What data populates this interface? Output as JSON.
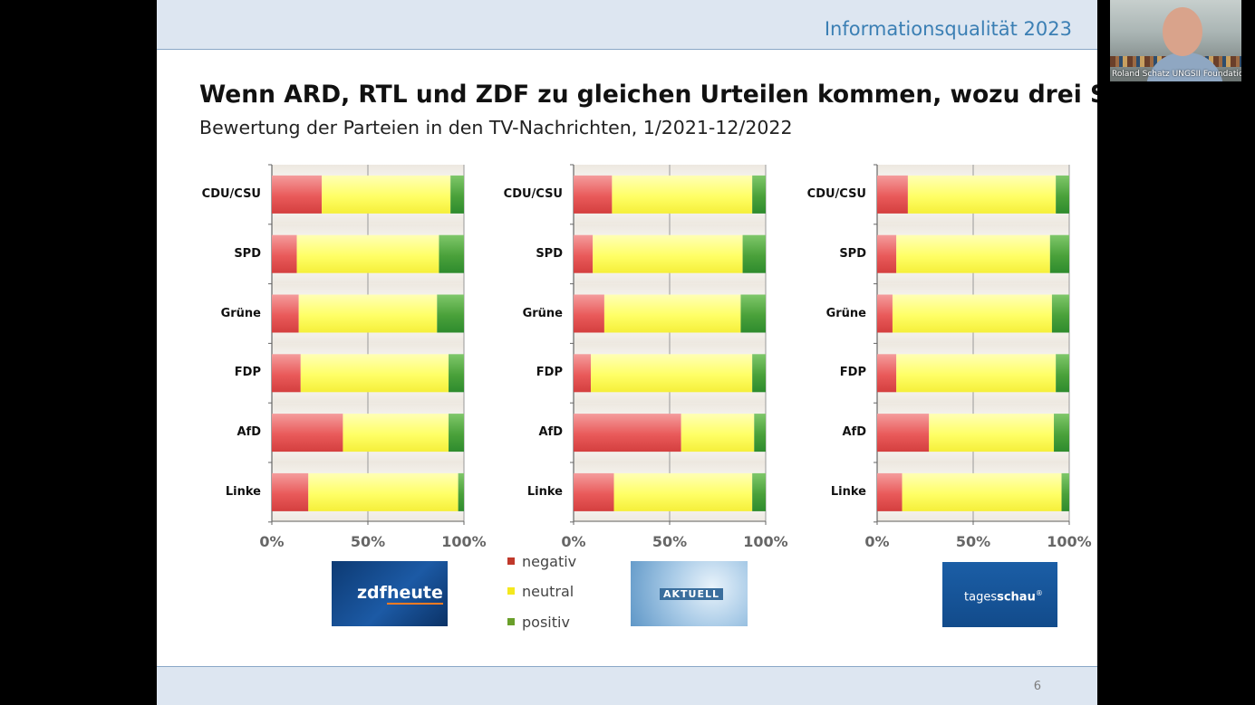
{
  "header": {
    "title": "Informationsqualität 2023"
  },
  "slide": {
    "title": "Wenn ARD, RTL und ZDF zu gleichen Urteilen kommen, wozu drei Sender?",
    "subtitle": "Bewertung der Parteien in den TV-Nachrichten, 1/2021-12/2022",
    "page_number": "6"
  },
  "webcam": {
    "caption": "Roland Schatz UNGSII Foundation"
  },
  "colors": {
    "negativ": "#e95a5a",
    "neutral": "#ffff66",
    "positiv": "#4aa13a"
  },
  "legend": [
    {
      "label": "negativ",
      "color": "#c0392b"
    },
    {
      "label": "neutral",
      "color": "#f4e81e"
    },
    {
      "label": "positiv",
      "color": "#6a9f2a"
    }
  ],
  "logos": [
    {
      "name": "zdf",
      "prefix": "zdf",
      "text": "heute"
    },
    {
      "name": "rtl",
      "text": "AKTUELL"
    },
    {
      "name": "ard",
      "prefix": "tages",
      "text": "schau"
    }
  ],
  "chart_data": [
    {
      "type": "bar",
      "orientation": "horizontal-stacked-100",
      "categories": [
        "CDU/CSU",
        "SPD",
        "Grüne",
        "FDP",
        "AfD",
        "Linke"
      ],
      "x_ticks": [
        "0%",
        "50%",
        "100%"
      ],
      "xlim": [
        0,
        100
      ],
      "series": [
        {
          "name": "negativ",
          "values": [
            26,
            13,
            14,
            15,
            37,
            19
          ]
        },
        {
          "name": "neutral",
          "values": [
            67,
            74,
            72,
            77,
            55,
            78
          ]
        },
        {
          "name": "positiv",
          "values": [
            7,
            13,
            14,
            8,
            8,
            3
          ]
        }
      ]
    },
    {
      "type": "bar",
      "orientation": "horizontal-stacked-100",
      "categories": [
        "CDU/CSU",
        "SPD",
        "Grüne",
        "FDP",
        "AfD",
        "Linke"
      ],
      "x_ticks": [
        "0%",
        "50%",
        "100%"
      ],
      "xlim": [
        0,
        100
      ],
      "series": [
        {
          "name": "negativ",
          "values": [
            20,
            10,
            16,
            9,
            56,
            21
          ]
        },
        {
          "name": "neutral",
          "values": [
            73,
            78,
            71,
            84,
            38,
            72
          ]
        },
        {
          "name": "positiv",
          "values": [
            7,
            12,
            13,
            7,
            6,
            7
          ]
        }
      ]
    },
    {
      "type": "bar",
      "orientation": "horizontal-stacked-100",
      "categories": [
        "CDU/CSU",
        "SPD",
        "Grüne",
        "FDP",
        "AfD",
        "Linke"
      ],
      "x_ticks": [
        "0%",
        "50%",
        "100%"
      ],
      "xlim": [
        0,
        100
      ],
      "series": [
        {
          "name": "negativ",
          "values": [
            16,
            10,
            8,
            10,
            27,
            13
          ]
        },
        {
          "name": "neutral",
          "values": [
            77,
            80,
            83,
            83,
            65,
            83
          ]
        },
        {
          "name": "positiv",
          "values": [
            7,
            10,
            9,
            7,
            8,
            4
          ]
        }
      ]
    }
  ]
}
